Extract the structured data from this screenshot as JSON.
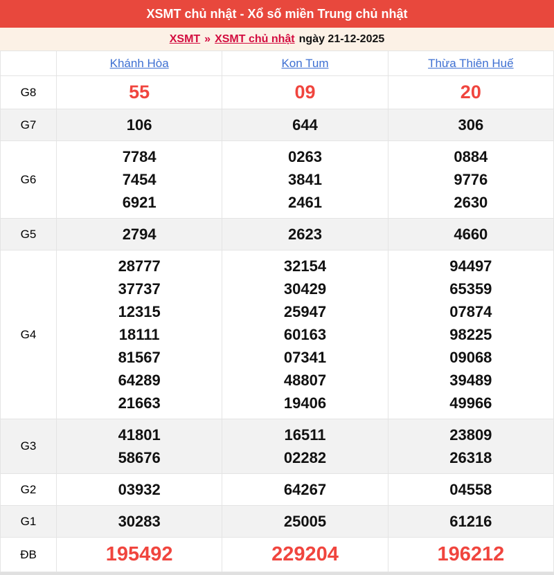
{
  "header": {
    "title": "XSMT chủ nhật - Xổ số miền Trung chủ nhật"
  },
  "breadcrumb": {
    "link_region": "XSMT",
    "separator": "»",
    "link_day": "XSMT chủ nhật",
    "date_text": "ngày 21-12-2025"
  },
  "colors": {
    "topbar_red": "#e8483d",
    "breadcrumb_bg": "#fcf1e6",
    "breadcrumb_link_red": "#d30c3f",
    "province_link_blue": "#3d6fd2",
    "highlight_number_red": "#f0453e",
    "stripe_grey": "#f2f2f2",
    "border_grey": "#e4e4e4"
  },
  "table": {
    "provinces": [
      "Khánh Hòa",
      "Kon Tum",
      "Thừa Thiên Huế"
    ],
    "rows": [
      {
        "label": "G8",
        "style": "red",
        "values": [
          [
            "55"
          ],
          [
            "09"
          ],
          [
            "20"
          ]
        ]
      },
      {
        "label": "G7",
        "style": "normal",
        "values": [
          [
            "106"
          ],
          [
            "644"
          ],
          [
            "306"
          ]
        ]
      },
      {
        "label": "G6",
        "style": "normal",
        "values": [
          [
            "7784",
            "7454",
            "6921"
          ],
          [
            "0263",
            "3841",
            "2461"
          ],
          [
            "0884",
            "9776",
            "2630"
          ]
        ]
      },
      {
        "label": "G5",
        "style": "normal",
        "values": [
          [
            "2794"
          ],
          [
            "2623"
          ],
          [
            "4660"
          ]
        ]
      },
      {
        "label": "G4",
        "style": "normal",
        "values": [
          [
            "28777",
            "37737",
            "12315",
            "18111",
            "81567",
            "64289",
            "21663"
          ],
          [
            "32154",
            "30429",
            "25947",
            "60163",
            "07341",
            "48807",
            "19406"
          ],
          [
            "94497",
            "65359",
            "07874",
            "98225",
            "09068",
            "39489",
            "49966"
          ]
        ]
      },
      {
        "label": "G3",
        "style": "normal",
        "values": [
          [
            "41801",
            "58676"
          ],
          [
            "16511",
            "02282"
          ],
          [
            "23809",
            "26318"
          ]
        ]
      },
      {
        "label": "G2",
        "style": "normal",
        "values": [
          [
            "03932"
          ],
          [
            "64267"
          ],
          [
            "04558"
          ]
        ]
      },
      {
        "label": "G1",
        "style": "normal",
        "values": [
          [
            "30283"
          ],
          [
            "25005"
          ],
          [
            "61216"
          ]
        ]
      },
      {
        "label": "ĐB",
        "style": "db",
        "values": [
          [
            "195492"
          ],
          [
            "229204"
          ],
          [
            "196212"
          ]
        ]
      }
    ]
  }
}
